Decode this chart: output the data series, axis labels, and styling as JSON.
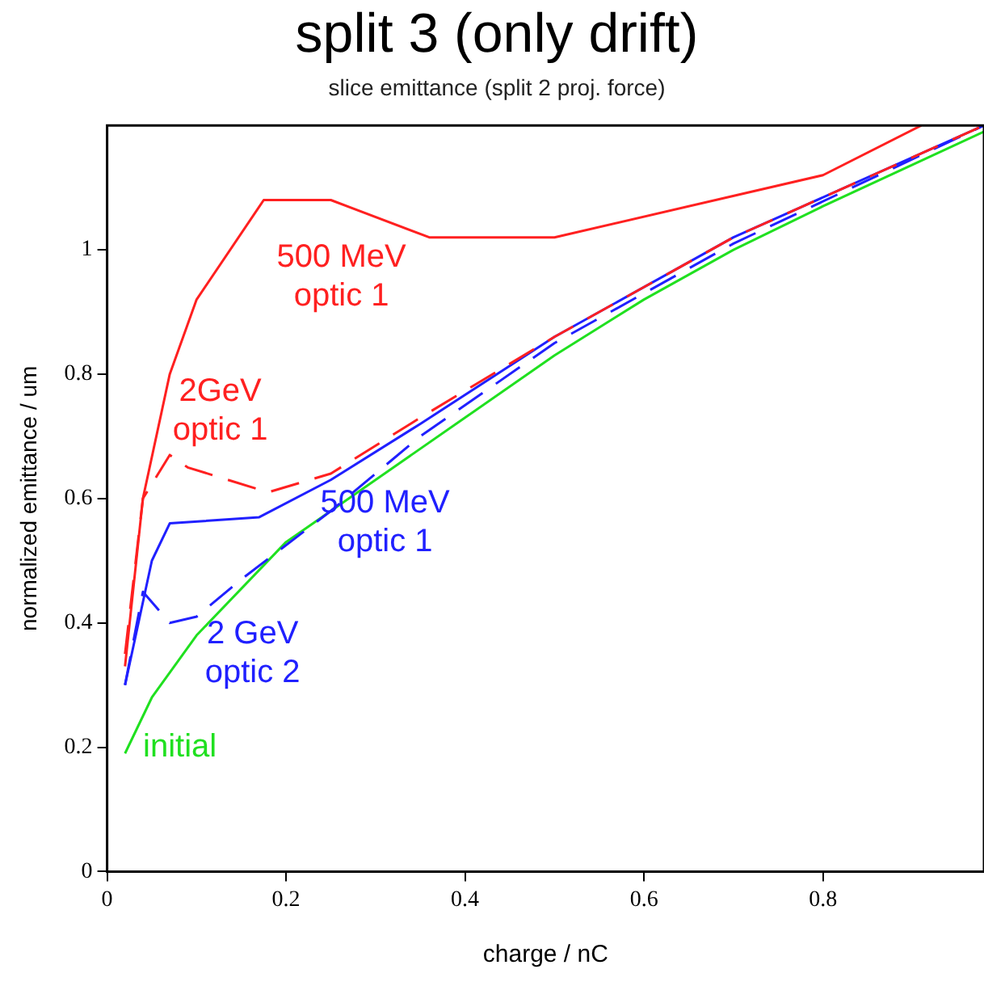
{
  "chart_data": {
    "type": "line",
    "title": "split 3 (only drift)",
    "subtitle": "slice emittance (split 2 proj. force)",
    "xlabel": "charge / nC",
    "ylabel": "normalized emittance / um",
    "xlim": [
      0,
      0.98
    ],
    "ylim": [
      0,
      1.2
    ],
    "xticks": [
      0,
      0.2,
      0.4,
      0.6,
      0.8
    ],
    "yticks": [
      0,
      0.2,
      0.4,
      0.6,
      0.8,
      1
    ],
    "grid": false,
    "legend": false,
    "marker": "none",
    "series": [
      {
        "name": "500 MeV\noptic 1",
        "color": "#ff2020",
        "line_style": "solid",
        "x": [
          0.02,
          0.04,
          0.07,
          0.1,
          0.175,
          0.25,
          0.36,
          0.5,
          0.8,
          0.91
        ],
        "values": [
          0.33,
          0.6,
          0.8,
          0.92,
          1.08,
          1.08,
          1.02,
          1.02,
          1.12,
          1.2
        ]
      },
      {
        "name": "2GeV\noptic 1",
        "color": "#ff2020",
        "line_style": "dashed",
        "x": [
          0.02,
          0.04,
          0.07,
          0.09,
          0.18,
          0.25,
          0.35,
          0.5,
          0.7,
          0.98
        ],
        "values": [
          0.35,
          0.6,
          0.67,
          0.65,
          0.61,
          0.64,
          0.73,
          0.86,
          1.02,
          1.2
        ]
      },
      {
        "name": "500 MeV\noptic 1",
        "color": "#2020ff",
        "line_style": "solid",
        "x": [
          0.02,
          0.05,
          0.07,
          0.17,
          0.25,
          0.35,
          0.5,
          0.7,
          0.98
        ],
        "values": [
          0.3,
          0.5,
          0.56,
          0.57,
          0.63,
          0.72,
          0.86,
          1.02,
          1.2
        ]
      },
      {
        "name": "2 GeV\noptic 2",
        "color": "#2020ff",
        "line_style": "dashed",
        "x": [
          0.02,
          0.04,
          0.07,
          0.1,
          0.15,
          0.25,
          0.35,
          0.5,
          0.7,
          0.98
        ],
        "values": [
          0.3,
          0.45,
          0.4,
          0.41,
          0.47,
          0.58,
          0.7,
          0.85,
          1.01,
          1.2
        ]
      },
      {
        "name": "initial",
        "color": "#20e020",
        "line_style": "solid",
        "x": [
          0.02,
          0.05,
          0.1,
          0.2,
          0.3,
          0.4,
          0.5,
          0.6,
          0.7,
          0.8,
          0.98
        ],
        "values": [
          0.19,
          0.28,
          0.38,
          0.53,
          0.63,
          0.73,
          0.83,
          0.92,
          1.0,
          1.07,
          1.19
        ]
      }
    ]
  }
}
